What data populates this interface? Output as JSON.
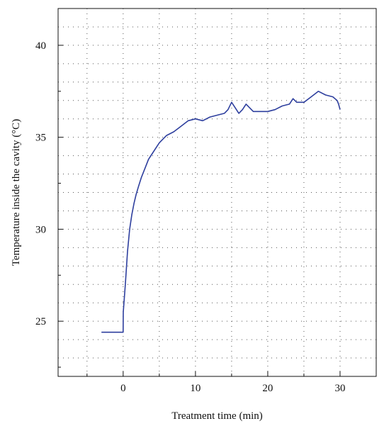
{
  "chart_data": {
    "type": "line",
    "title": "",
    "xlabel": "Treatment time (min)",
    "ylabel": "Temperature inside the cavity (°C)",
    "xlim": [
      -9,
      35
    ],
    "ylim": [
      22,
      42
    ],
    "x_ticks": [
      0,
      10,
      20,
      30
    ],
    "x_tick_labels": [
      "0",
      "10",
      "20",
      "30"
    ],
    "y_ticks": [
      25,
      30,
      35,
      40
    ],
    "y_tick_labels": [
      "25",
      "30",
      "35",
      "40"
    ],
    "grid": "dotted",
    "legend": "none",
    "series": [
      {
        "color": "#2e3f9e",
        "x": [
          -3,
          -2,
          -1,
          0,
          0.02,
          0.3,
          0.6,
          0.9,
          1.2,
          1.5,
          1.8,
          2.1,
          2.5,
          3,
          3.5,
          4,
          4.5,
          5,
          5.5,
          6,
          7,
          8,
          9,
          10,
          11,
          12,
          13,
          14,
          14.5,
          15,
          15.5,
          16,
          16.5,
          17,
          18,
          19,
          20,
          21,
          22,
          23,
          23.5,
          24,
          25,
          26,
          27,
          28,
          29,
          29.6,
          29.8,
          30
        ],
        "y": [
          24.4,
          24.4,
          24.4,
          24.4,
          25.5,
          27.0,
          28.8,
          30.0,
          30.8,
          31.4,
          31.9,
          32.3,
          32.8,
          33.3,
          33.8,
          34.1,
          34.4,
          34.7,
          34.9,
          35.1,
          35.3,
          35.6,
          35.9,
          36.0,
          35.9,
          36.1,
          36.2,
          36.3,
          36.5,
          36.9,
          36.6,
          36.3,
          36.5,
          36.8,
          36.4,
          36.4,
          36.4,
          36.5,
          36.7,
          36.8,
          37.1,
          36.9,
          36.9,
          37.2,
          37.5,
          37.3,
          37.2,
          37.0,
          36.8,
          36.5
        ]
      }
    ]
  }
}
